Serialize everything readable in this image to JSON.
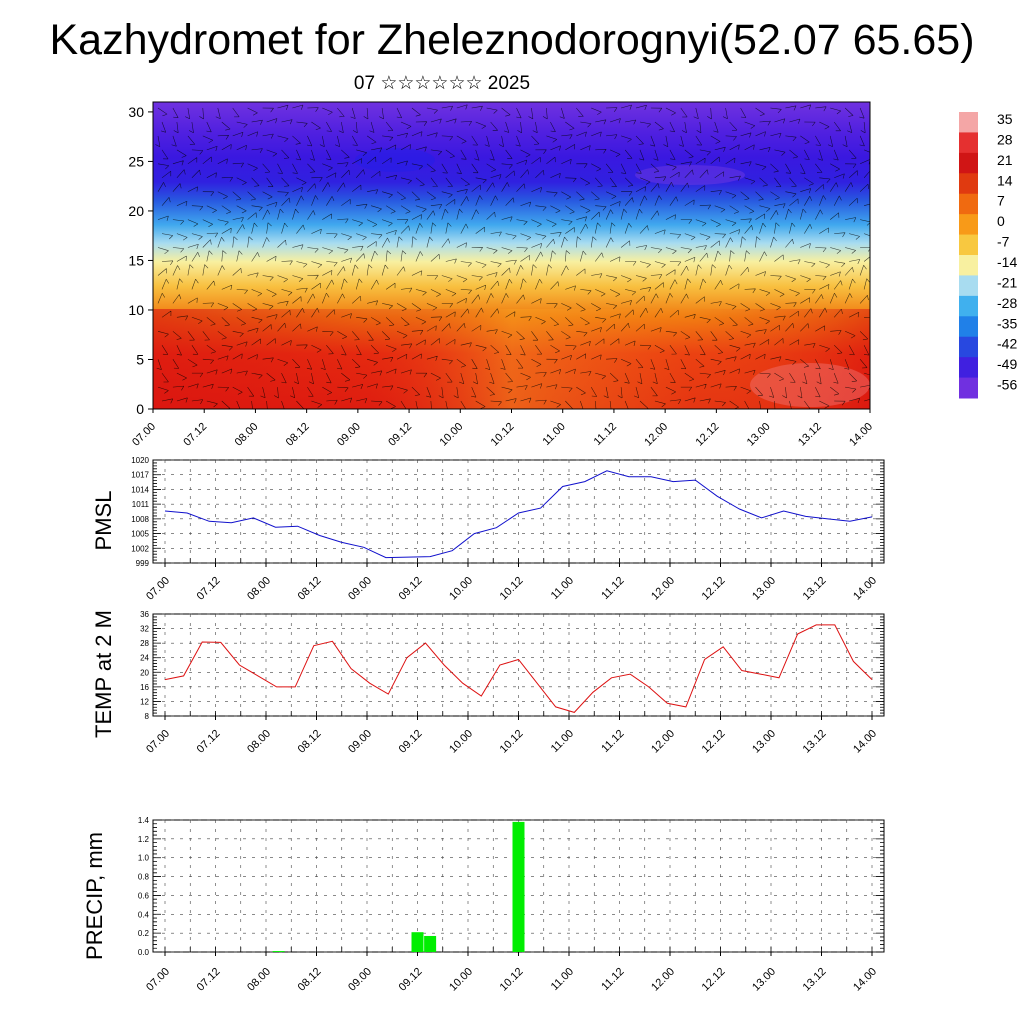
{
  "title": "Kazhydromet for Zheleznodorognyi(52.07 65.65)",
  "subtitle": "07 ☆☆☆☆☆☆ 2025",
  "colorbar": {
    "labels": [
      "35",
      "28",
      "21",
      "14",
      "7",
      "0",
      "-7",
      "-14",
      "-21",
      "-28",
      "-35",
      "-42",
      "-49",
      "-56"
    ],
    "colors": [
      "#f4a6a6",
      "#e53030",
      "#d01515",
      "#e03a10",
      "#f06a10",
      "#f89a18",
      "#f8c840",
      "#f8f0a0",
      "#a8dcf0",
      "#40b0ee",
      "#2080e8",
      "#2848e0",
      "#4020e0",
      "#7030e0"
    ]
  },
  "chart_data": [
    {
      "type": "heatmap",
      "title": "",
      "xlabel": "",
      "ylabel": "",
      "x_ticks": [
        "07.00",
        "07.12",
        "08.00",
        "08.12",
        "09.00",
        "09.12",
        "10.00",
        "10.12",
        "11.00",
        "11.12",
        "12.00",
        "12.12",
        "13.00",
        "13.12",
        "14.00"
      ],
      "y_ticks": [
        0,
        5,
        10,
        15,
        20,
        25,
        30
      ],
      "ylim": [
        0,
        31
      ],
      "z_range": [
        -56,
        35
      ],
      "description_layers": [
        {
          "height_range": [
            0,
            9
          ],
          "temp": "warm (14..28)"
        },
        {
          "height_range": [
            9,
            15
          ],
          "temp": "moderate (-7..14)"
        },
        {
          "height_range": [
            15,
            22
          ],
          "temp": "cold (-42..-14)"
        },
        {
          "height_range": [
            22,
            31
          ],
          "temp": "very cold (-56..-49)"
        }
      ]
    },
    {
      "type": "line",
      "ylabel": "PMSL",
      "ylim": [
        999,
        1020
      ],
      "y_ticks": [
        999,
        1002,
        1005,
        1008,
        1011,
        1014,
        1017,
        1020
      ],
      "x_ticks": [
        "07.00",
        "07.12",
        "08.00",
        "08.12",
        "09.00",
        "09.12",
        "10.00",
        "10.12",
        "11.00",
        "11.12",
        "12.00",
        "12.12",
        "13.00",
        "13.12",
        "14.00"
      ],
      "series": [
        {
          "values": [
            1009.6,
            1009.2,
            1007.5,
            1007.2,
            1008.2,
            1006.3,
            1006.5,
            1004.6,
            1003.2,
            1002.2,
            1000.1,
            1000.2,
            1000.3,
            1001.5,
            1005.0,
            1006.2,
            1009.2,
            1010.2,
            1014.6,
            1015.6,
            1017.8,
            1016.6,
            1016.6,
            1015.6,
            1015.9,
            1012.6,
            1010.0,
            1008.2,
            1009.6,
            1008.5,
            1008.0,
            1007.5,
            1008.4
          ],
          "color": "#1010cc"
        }
      ]
    },
    {
      "type": "line",
      "ylabel": "TEMP at 2 M",
      "ylim": [
        8,
        36
      ],
      "y_ticks": [
        8,
        12,
        16,
        20,
        24,
        28,
        32,
        36
      ],
      "x_ticks": [
        "07.00",
        "07.12",
        "08.00",
        "08.12",
        "09.00",
        "09.12",
        "10.00",
        "10.12",
        "11.00",
        "11.12",
        "12.00",
        "12.12",
        "13.00",
        "13.12",
        "14.00"
      ],
      "series": [
        {
          "values": [
            18.0,
            19.0,
            28.3,
            28.2,
            22.0,
            19.0,
            16.0,
            16.0,
            27.3,
            28.5,
            21.0,
            17.0,
            14.0,
            24.0,
            28.0,
            22.0,
            17.0,
            13.5,
            22.0,
            23.5,
            17.0,
            10.5,
            9.0,
            14.5,
            18.5,
            19.5,
            16.0,
            11.5,
            10.5,
            23.5,
            27.0,
            20.5,
            19.5,
            18.5,
            30.5,
            33.0,
            33.0,
            23.0,
            18.0
          ],
          "color": "#dd1111"
        }
      ]
    },
    {
      "type": "bar",
      "ylabel": "PRECIP, mm",
      "ylim": [
        0,
        1.4
      ],
      "y_ticks": [
        "0.0",
        "0.2",
        "0.4",
        "0.6",
        "0.8",
        "1.0",
        "1.2",
        "1.4"
      ],
      "x_ticks": [
        "07.00",
        "07.12",
        "08.00",
        "08.12",
        "09.00",
        "09.12",
        "10.00",
        "10.12",
        "11.00",
        "11.12",
        "12.00",
        "12.12",
        "13.00",
        "13.12",
        "14.00"
      ],
      "bars": [
        {
          "x_hours": 27,
          "value": 0.01
        },
        {
          "x_hours": 60,
          "value": 0.21
        },
        {
          "x_hours": 63,
          "value": 0.17
        },
        {
          "x_hours": 84,
          "value": 1.38
        }
      ],
      "color": "#00ee00"
    }
  ]
}
